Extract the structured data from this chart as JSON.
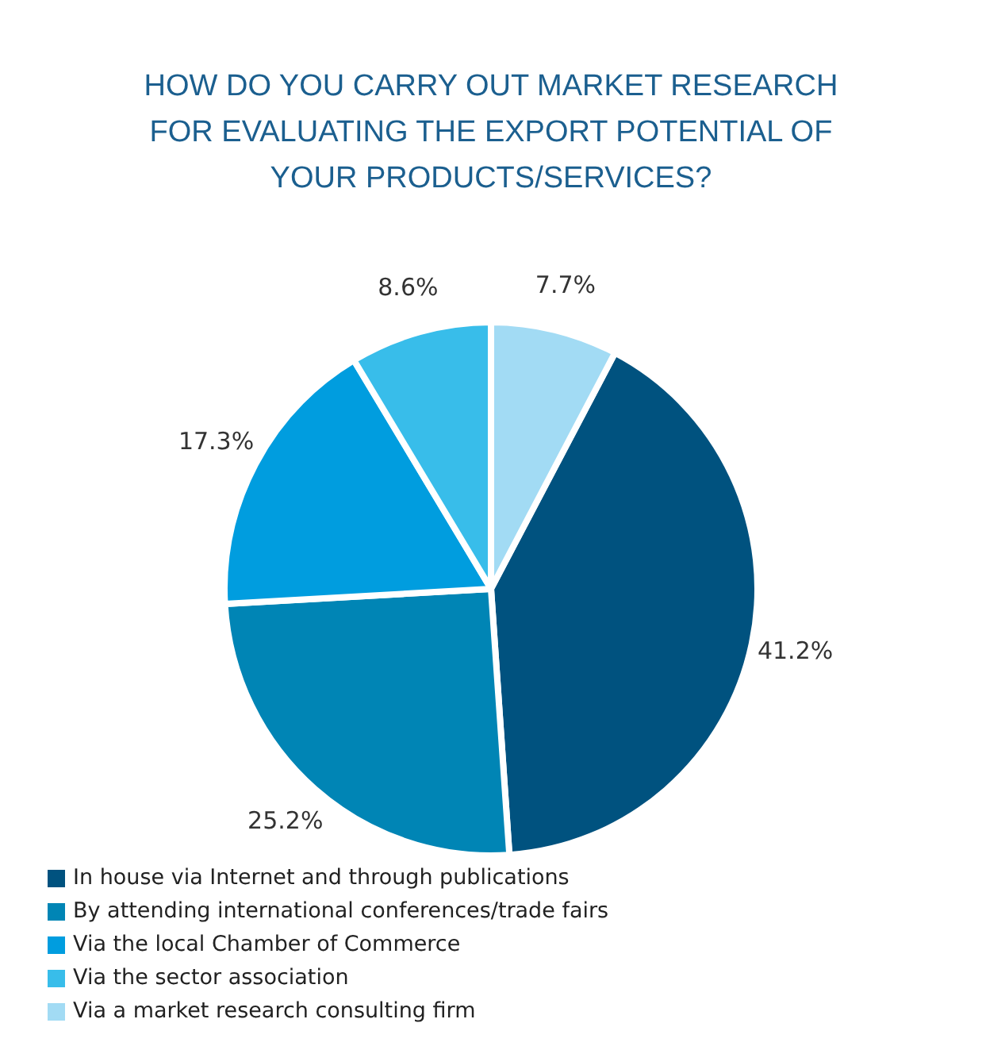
{
  "chart_data": {
    "type": "pie",
    "title": "HOW DO YOU CARRY OUT MARKET RESEARCH FOR EVALUATING THE EXPORT POTENTIAL OF YOUR PRODUCTS/SERVICES?",
    "categories": [
      "In house via Internet and through publications",
      "By attending international conferences/trade fairs",
      "Via the local Chamber of Commerce",
      "Via the sector association",
      "Via a market research consulting firm"
    ],
    "values": [
      41.2,
      25.2,
      17.3,
      8.6,
      7.7
    ],
    "colors": [
      "#00527f",
      "#0085b5",
      "#009ddf",
      "#38bdea",
      "#a2dbf4"
    ],
    "value_labels": [
      "41.2%",
      "25.2%",
      "17.3%",
      "8.6%",
      "7.7%"
    ],
    "legend": "bottom"
  }
}
